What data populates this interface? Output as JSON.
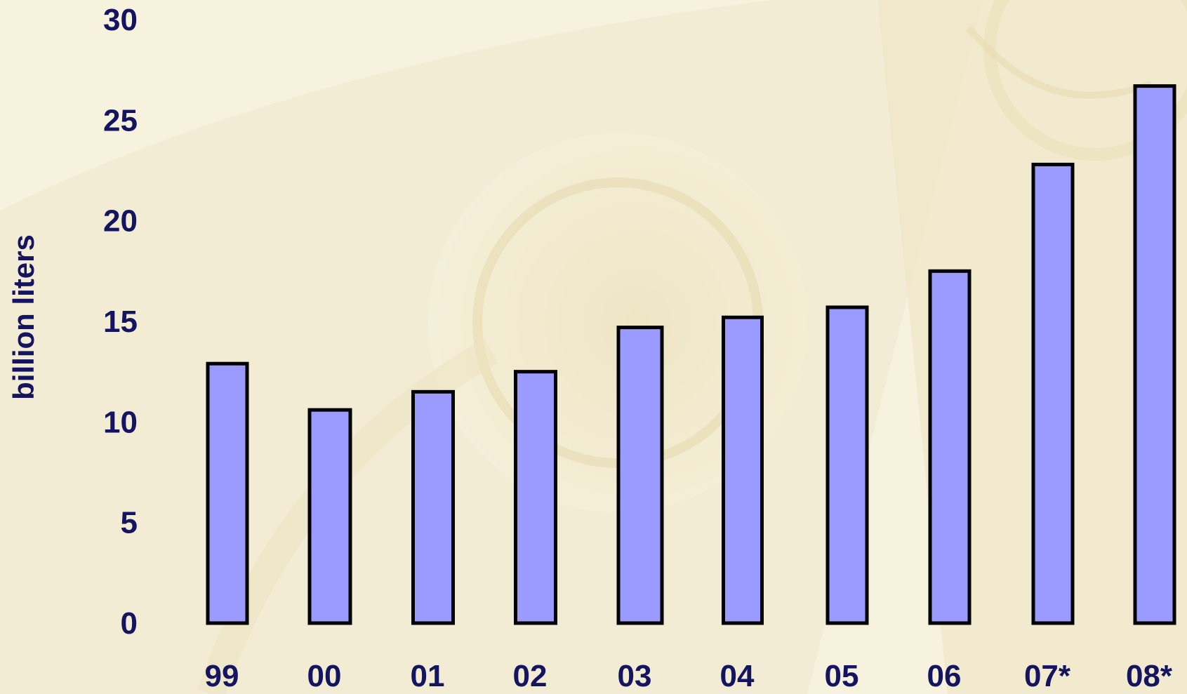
{
  "chart_data": {
    "type": "bar",
    "categories": [
      "99",
      "00",
      "01",
      "02",
      "03",
      "04",
      "05",
      "06",
      "07*",
      "08*"
    ],
    "values": [
      12.9,
      10.6,
      11.5,
      12.5,
      14.7,
      15.2,
      15.7,
      17.5,
      22.8,
      26.7
    ],
    "title": "",
    "xlabel": "",
    "ylabel": "billion liters",
    "ylim": [
      0,
      30
    ],
    "yticks": [
      0,
      5,
      10,
      15,
      20,
      25,
      30
    ],
    "grid": false,
    "legend": "none",
    "bar_color": "#9b9bff",
    "bar_edge_color": "#000000",
    "text_color": "#141460"
  }
}
